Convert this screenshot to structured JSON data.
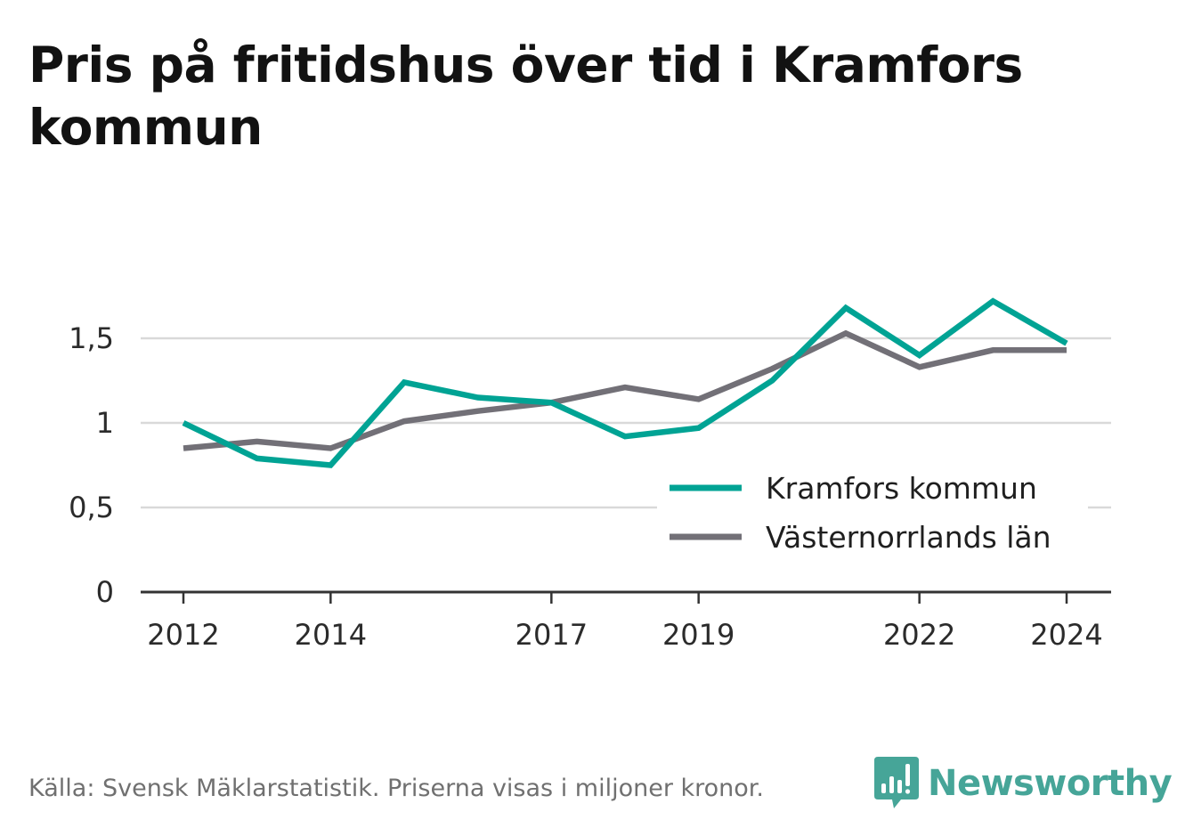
{
  "title": "Pris på fritidshus över tid i Kramfors kommun",
  "source": "Källa: Svensk Mäklarstatistik. Priserna visas i miljoner kronor.",
  "brand": {
    "name": "Newsworthy",
    "icon": "bar-chart-speech-bubble-icon",
    "color": "#46a598"
  },
  "chart_data": {
    "type": "line",
    "x": [
      2012,
      2013,
      2014,
      2015,
      2016,
      2017,
      2018,
      2019,
      2020,
      2021,
      2022,
      2023,
      2024
    ],
    "x_tick_labels": [
      "2012",
      "2014",
      "2017",
      "2019",
      "2022",
      "2024"
    ],
    "x_tick_values": [
      2012,
      2014,
      2017,
      2019,
      2022,
      2024
    ],
    "y_tick_labels": [
      "0",
      "0,5",
      "1",
      "1,5"
    ],
    "y_tick_values": [
      0,
      0.5,
      1,
      1.5
    ],
    "ylim": [
      0,
      1.9
    ],
    "xlim": [
      2011.4,
      2024.6
    ],
    "grid": true,
    "legend_position": "bottom-right",
    "series": [
      {
        "name": "Kramfors kommun",
        "color": "#00a394",
        "values": [
          1.0,
          0.79,
          0.75,
          1.24,
          1.15,
          1.12,
          0.92,
          0.97,
          1.25,
          1.68,
          1.4,
          1.72,
          1.47
        ]
      },
      {
        "name": "Västernorrlands län",
        "color": "#727077",
        "values": [
          0.85,
          0.89,
          0.85,
          1.01,
          1.07,
          1.12,
          1.21,
          1.14,
          1.32,
          1.53,
          1.33,
          1.43,
          1.43
        ]
      }
    ]
  }
}
